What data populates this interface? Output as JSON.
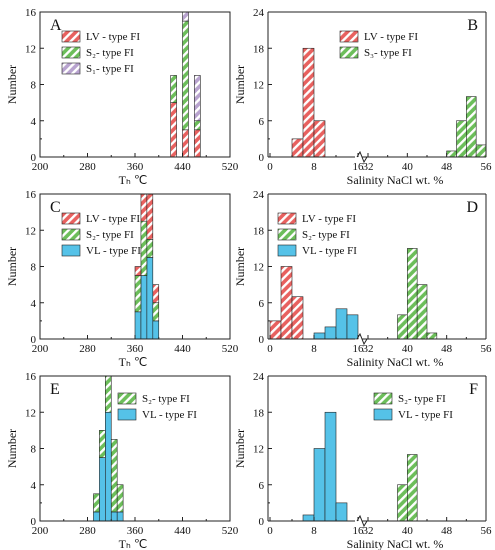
{
  "colors": {
    "lv": "#e8615f",
    "s": "#6cbe5a",
    "s1": "#b8a3cf",
    "vl": "#55c2e8",
    "hatch": "#ffffff",
    "frame": "#222222"
  },
  "chart_data": [
    {
      "type": "bar",
      "stacked": true,
      "panel_label": "A",
      "xlabel": "Tₕ ℃",
      "ylabel": "Number",
      "xlim": [
        200,
        520
      ],
      "ylim": [
        0,
        16
      ],
      "x_ticks": [
        "200",
        "280",
        "360",
        "440",
        "520"
      ],
      "y_ticks": [
        "0",
        "4",
        "8",
        "12",
        "16"
      ],
      "bin_width": 10,
      "legend": "top-left",
      "series": [
        {
          "name": "LV - type FI",
          "style": "lv",
          "bins": [
            [
              420,
              6
            ],
            [
              440,
              3
            ],
            [
              460,
              3
            ]
          ]
        },
        {
          "name": "S₂- type FI",
          "style": "s",
          "bins": [
            [
              420,
              3
            ],
            [
              440,
              12
            ],
            [
              460,
              1
            ]
          ]
        },
        {
          "name": "S₁- type FI",
          "style": "s1",
          "bins": [
            [
              440,
              1
            ],
            [
              460,
              5
            ]
          ]
        }
      ]
    },
    {
      "type": "bar",
      "stacked": true,
      "panel_label": "B",
      "xlabel": "Salinity  NaCl   wt. %",
      "ylabel": "Number",
      "broken_axis": true,
      "ylim": [
        0,
        24
      ],
      "y_ticks": [
        "0",
        "6",
        "12",
        "18",
        "24"
      ],
      "left_segment": {
        "xlim": [
          0,
          16
        ],
        "x_ticks": [
          "0",
          "8",
          "16"
        ]
      },
      "right_segment": {
        "xlim": [
          32,
          56
        ],
        "x_ticks": [
          "32",
          "40",
          "48",
          "56"
        ]
      },
      "legend": "top-center",
      "series": [
        {
          "name": "LV - type FI",
          "style": "lv",
          "bins": [
            [
              4,
              3
            ],
            [
              6,
              18
            ],
            [
              8,
              6
            ]
          ]
        },
        {
          "name": "S₃- type FI",
          "style": "s",
          "bins": [
            [
              48,
              1
            ],
            [
              50,
              6
            ],
            [
              52,
              10
            ],
            [
              54,
              2
            ]
          ]
        }
      ]
    },
    {
      "type": "bar",
      "stacked": true,
      "panel_label": "C",
      "xlabel": "Tₕ ℃",
      "ylabel": "Number",
      "xlim": [
        200,
        520
      ],
      "ylim": [
        0,
        16
      ],
      "x_ticks": [
        "200",
        "280",
        "360",
        "440",
        "520"
      ],
      "y_ticks": [
        "0",
        "4",
        "8",
        "12",
        "16"
      ],
      "bin_width": 10,
      "legend": "top-left",
      "series": [
        {
          "name": "VL - type FI",
          "style": "vl",
          "bins": [
            [
              360,
              3
            ],
            [
              370,
              7
            ],
            [
              380,
              9
            ],
            [
              390,
              2
            ]
          ]
        },
        {
          "name": "S₂- type FI",
          "style": "s",
          "bins": [
            [
              360,
              4
            ],
            [
              370,
              6
            ],
            [
              380,
              2
            ],
            [
              390,
              2
            ]
          ]
        },
        {
          "name": "LV - type FI",
          "style": "lv",
          "bins": [
            [
              360,
              1
            ],
            [
              370,
              3
            ],
            [
              380,
              5
            ],
            [
              390,
              2
            ]
          ]
        }
      ]
    },
    {
      "type": "bar",
      "stacked": true,
      "panel_label": "D",
      "xlabel": "Salinity  NaCl   wt. %",
      "ylabel": "Number",
      "broken_axis": true,
      "ylim": [
        0,
        24
      ],
      "y_ticks": [
        "0",
        "6",
        "12",
        "18",
        "24"
      ],
      "left_segment": {
        "xlim": [
          0,
          16
        ],
        "x_ticks": [
          "0",
          "8",
          "16"
        ]
      },
      "right_segment": {
        "xlim": [
          32,
          56
        ],
        "x_ticks": [
          "32",
          "40",
          "48",
          "56"
        ]
      },
      "legend": "top-left",
      "series": [
        {
          "name": "LV - type FI",
          "style": "lv",
          "bins": [
            [
              0,
              3
            ],
            [
              2,
              12
            ],
            [
              4,
              7
            ]
          ]
        },
        {
          "name": "S₂- type FI",
          "style": "s",
          "bins": [
            [
              38,
              4
            ],
            [
              40,
              15
            ],
            [
              42,
              9
            ],
            [
              44,
              1
            ]
          ]
        },
        {
          "name": "VL - type FI",
          "style": "vl",
          "bins": [
            [
              8,
              1
            ],
            [
              10,
              2
            ],
            [
              12,
              5
            ],
            [
              14,
              4
            ]
          ]
        }
      ]
    },
    {
      "type": "bar",
      "stacked": true,
      "panel_label": "E",
      "xlabel": "Tₕ ℃",
      "ylabel": "Number",
      "xlim": [
        200,
        520
      ],
      "ylim": [
        0,
        16
      ],
      "x_ticks": [
        "200",
        "280",
        "360",
        "440",
        "520"
      ],
      "y_ticks": [
        "0",
        "4",
        "8",
        "12",
        "16"
      ],
      "bin_width": 10,
      "legend": "top-right",
      "series": [
        {
          "name": "VL - type FI",
          "style": "vl",
          "bins": [
            [
              290,
              1
            ],
            [
              300,
              7
            ],
            [
              310,
              12
            ],
            [
              320,
              1
            ],
            [
              330,
              1
            ]
          ]
        },
        {
          "name": "S₂- type FI",
          "style": "s",
          "bins": [
            [
              290,
              2
            ],
            [
              300,
              3
            ],
            [
              310,
              4
            ],
            [
              320,
              8
            ],
            [
              330,
              3
            ]
          ]
        }
      ]
    },
    {
      "type": "bar",
      "stacked": true,
      "panel_label": "F",
      "xlabel": "Salinity  NaCl   wt. %",
      "ylabel": "Number",
      "broken_axis": true,
      "ylim": [
        0,
        24
      ],
      "y_ticks": [
        "0",
        "6",
        "12",
        "18",
        "24"
      ],
      "left_segment": {
        "xlim": [
          0,
          16
        ],
        "x_ticks": [
          "0",
          "8",
          "16"
        ]
      },
      "right_segment": {
        "xlim": [
          32,
          56
        ],
        "x_ticks": [
          "32",
          "40",
          "48",
          "56"
        ]
      },
      "legend": "top-right",
      "series": [
        {
          "name": "S₂- type FI",
          "style": "s",
          "bins": [
            [
              38,
              6
            ],
            [
              40,
              11
            ]
          ]
        },
        {
          "name": "VL - type FI",
          "style": "vl",
          "bins": [
            [
              6,
              1
            ],
            [
              8,
              12
            ],
            [
              10,
              18
            ],
            [
              12,
              3
            ]
          ]
        }
      ]
    }
  ]
}
